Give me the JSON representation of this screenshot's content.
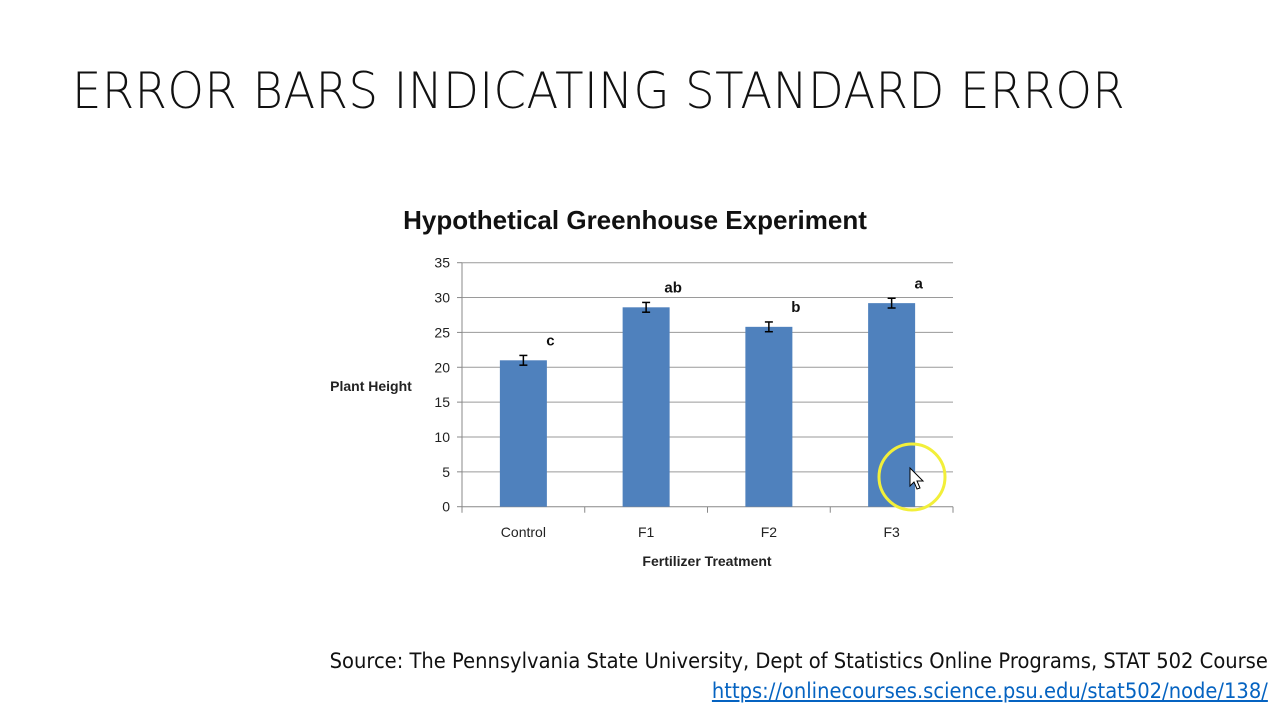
{
  "slide_title": "ERROR BARS INDICATING STANDARD ERROR",
  "source_text": "Source: The Pennsylvania State University, Dept of Statistics Online Programs, STAT 502 Course",
  "source_link": "https://onlinecourses.science.psu.edu/stat502/node/138/",
  "chart_data": {
    "type": "bar",
    "title": "Hypothetical Greenhouse Experiment",
    "xlabel": "Fertilizer Treatment",
    "ylabel": "Plant Height",
    "categories": [
      "Control",
      "F1",
      "F2",
      "F3"
    ],
    "values": [
      21.0,
      28.6,
      25.8,
      29.2
    ],
    "errors": [
      0.7,
      0.7,
      0.7,
      0.7
    ],
    "annotations": [
      "c",
      "ab",
      "b",
      "a"
    ],
    "ylim": [
      0,
      35
    ],
    "yticks": [
      0,
      5,
      10,
      15,
      20,
      25,
      30,
      35
    ],
    "grid": true,
    "bar_color": "#4f81bd",
    "legend": "none"
  }
}
